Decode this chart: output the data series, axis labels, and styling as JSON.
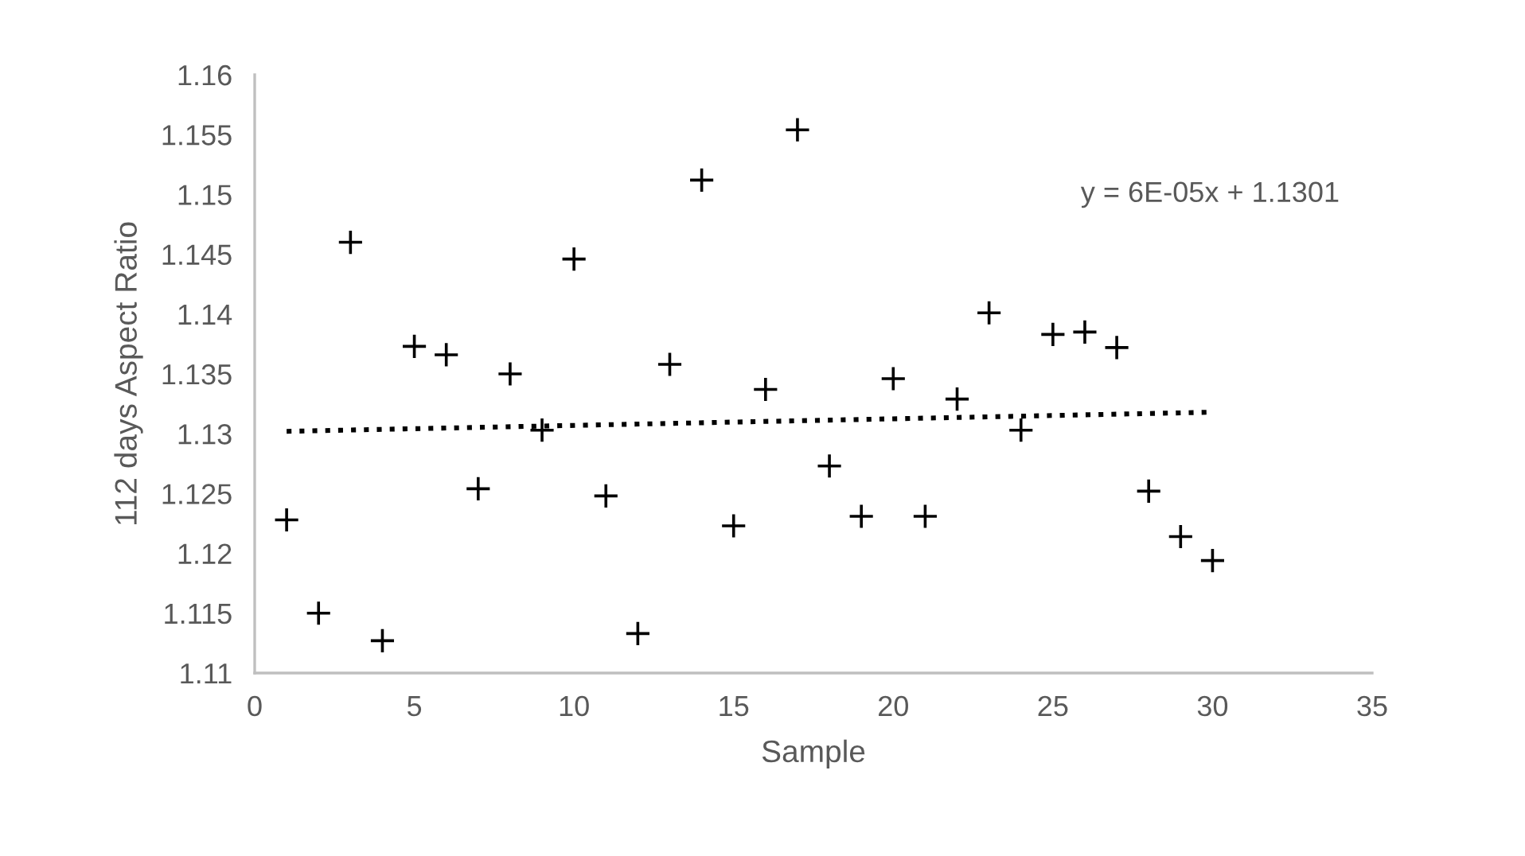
{
  "chart_data": {
    "type": "scatter",
    "xlabel": "Sample",
    "ylabel": "112 days Aspect Ratio",
    "xlim": [
      0,
      35
    ],
    "xticks": [
      0,
      5,
      10,
      15,
      20,
      25,
      30,
      35
    ],
    "ylim": [
      1.11,
      1.16
    ],
    "yticks": [
      1.11,
      1.115,
      1.12,
      1.125,
      1.13,
      1.135,
      1.14,
      1.145,
      1.15,
      1.155,
      1.16
    ],
    "grid": false,
    "series": [
      {
        "marker": "cross",
        "color": "#000000",
        "x": [
          1,
          2,
          3,
          4,
          5,
          6,
          7,
          8,
          9,
          10,
          11,
          12,
          13,
          14,
          15,
          16,
          17,
          18,
          19,
          20,
          21,
          22,
          23,
          24,
          25,
          26,
          27,
          28,
          29,
          30
        ],
        "values": [
          1.1228,
          1.115,
          1.146,
          1.1127,
          1.1373,
          1.1366,
          1.1254,
          1.135,
          1.1303,
          1.1446,
          1.1248,
          1.1133,
          1.1358,
          1.1512,
          1.1223,
          1.1337,
          1.1554,
          1.1273,
          1.1231,
          1.1346,
          1.1231,
          1.1329,
          1.1401,
          1.1303,
          1.1383,
          1.1385,
          1.1372,
          1.1252,
          1.1214,
          1.1194
        ]
      },
      {
        "type": "line",
        "color": "#000000",
        "line_style": "dotted",
        "x": [
          1,
          30
        ],
        "values": [
          1.1302,
          1.1318
        ]
      }
    ],
    "annotations": [
      "y = 6E-05x + 1.1301"
    ]
  }
}
